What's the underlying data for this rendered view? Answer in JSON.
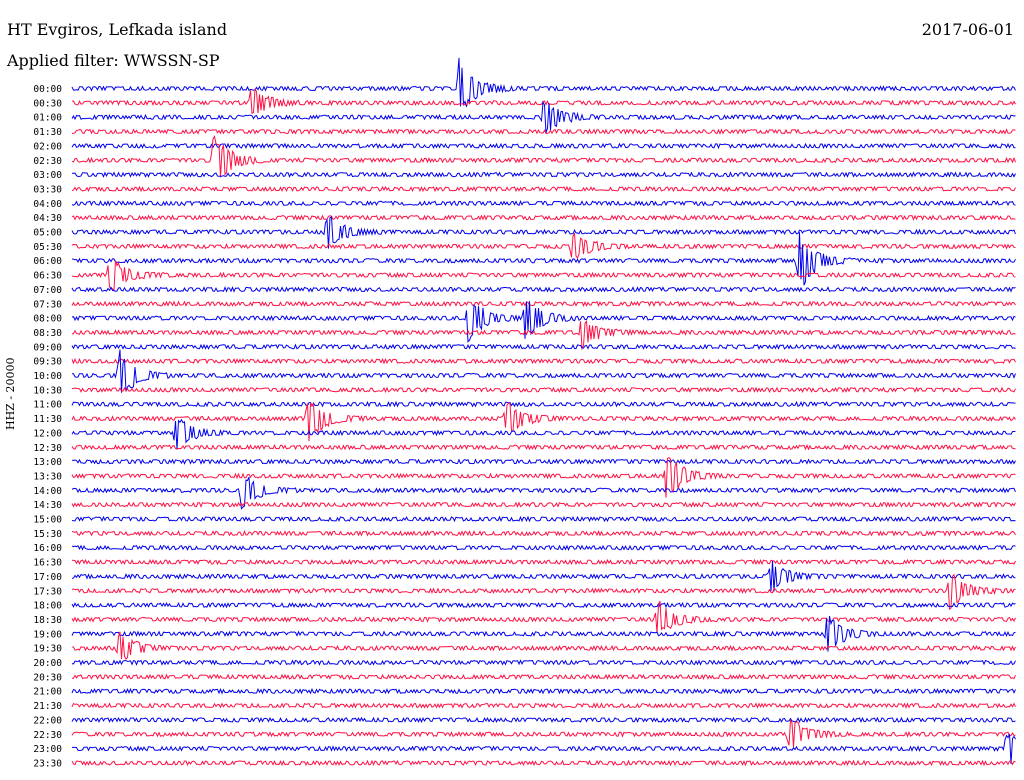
{
  "header": {
    "station": "HT Evgiros, Lefkada island",
    "filter": "Applied filter: WWSSN-SP",
    "date": "2017-06-01"
  },
  "chart_data": {
    "type": "line",
    "title": "HT Evgiros, Lefkada island",
    "subtitle": "Applied filter: WWSSN-SP",
    "ylabel": "HHZ - 20000",
    "trace_colors": [
      "#0000ee",
      "#ff1144"
    ],
    "row_labels": [
      "00:00",
      "00:30",
      "01:00",
      "01:30",
      "02:00",
      "02:30",
      "03:00",
      "03:30",
      "04:00",
      "04:30",
      "05:00",
      "05:30",
      "06:00",
      "06:30",
      "07:00",
      "07:30",
      "08:00",
      "08:30",
      "09:00",
      "09:30",
      "10:00",
      "10:30",
      "11:00",
      "11:30",
      "12:00",
      "12:30",
      "13:00",
      "13:30",
      "14:00",
      "14:30",
      "15:00",
      "15:30",
      "16:00",
      "16:30",
      "17:00",
      "17:30",
      "18:00",
      "18:30",
      "19:00",
      "19:30",
      "20:00",
      "20:30",
      "21:00",
      "21:30",
      "22:00",
      "22:30",
      "23:00",
      "23:30"
    ],
    "events": [
      {
        "row": "00:00",
        "pos": 0.41,
        "amp": 0.9
      },
      {
        "row": "00:30",
        "pos": 0.19,
        "amp": 0.5
      },
      {
        "row": "01:00",
        "pos": 0.5,
        "amp": 0.6
      },
      {
        "row": "02:30",
        "pos": 0.15,
        "amp": 0.9
      },
      {
        "row": "05:00",
        "pos": 0.27,
        "amp": 0.6
      },
      {
        "row": "05:30",
        "pos": 0.53,
        "amp": 0.5
      },
      {
        "row": "06:00",
        "pos": 0.77,
        "amp": 1.0
      },
      {
        "row": "06:30",
        "pos": 0.04,
        "amp": 0.6
      },
      {
        "row": "08:00",
        "pos": 0.42,
        "amp": 0.8
      },
      {
        "row": "08:00",
        "pos": 0.48,
        "amp": 0.7
      },
      {
        "row": "08:30",
        "pos": 0.54,
        "amp": 0.5
      },
      {
        "row": "10:00",
        "pos": 0.05,
        "amp": 0.8
      },
      {
        "row": "11:30",
        "pos": 0.25,
        "amp": 0.8
      },
      {
        "row": "11:30",
        "pos": 0.46,
        "amp": 0.6
      },
      {
        "row": "12:00",
        "pos": 0.11,
        "amp": 0.6
      },
      {
        "row": "13:30",
        "pos": 0.63,
        "amp": 0.8
      },
      {
        "row": "14:00",
        "pos": 0.18,
        "amp": 0.6
      },
      {
        "row": "17:00",
        "pos": 0.74,
        "amp": 0.5
      },
      {
        "row": "17:30",
        "pos": 0.93,
        "amp": 0.6
      },
      {
        "row": "18:30",
        "pos": 0.62,
        "amp": 0.6
      },
      {
        "row": "19:00",
        "pos": 0.8,
        "amp": 0.6
      },
      {
        "row": "19:30",
        "pos": 0.05,
        "amp": 0.5
      },
      {
        "row": "22:30",
        "pos": 0.76,
        "amp": 0.6
      },
      {
        "row": "23:00",
        "pos": 0.99,
        "amp": 0.6
      }
    ]
  }
}
